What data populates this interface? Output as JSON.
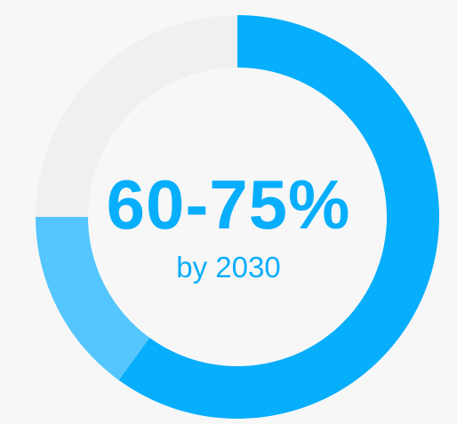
{
  "chart_data": {
    "type": "donut",
    "center_label": "60-75%",
    "center_sublabel": "by 2030",
    "range": {
      "low": 60,
      "high": 75
    },
    "total": 100,
    "segments": [
      {
        "value": 60,
        "color": "#07aefc"
      },
      {
        "value": 15,
        "color": "#55c6fd"
      },
      {
        "value": 25,
        "color": "#f0f0f0"
      }
    ],
    "text_color": "#07aefc",
    "background_color": "#f7f7f7"
  }
}
